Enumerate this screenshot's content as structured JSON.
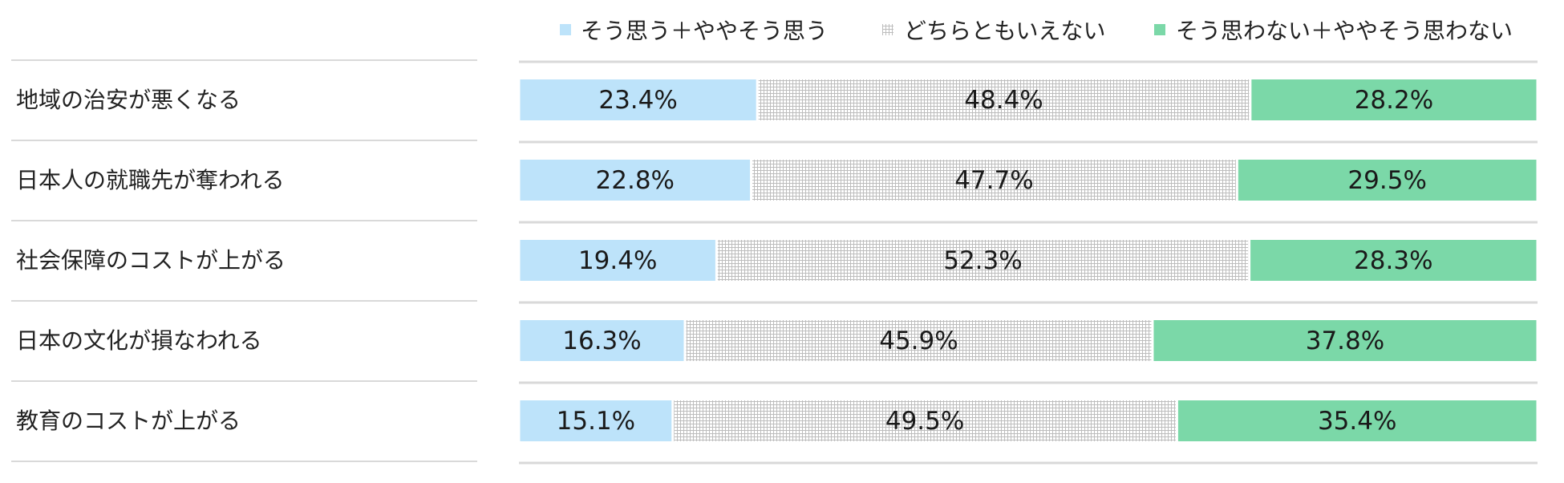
{
  "chart_data": {
    "type": "bar",
    "orientation": "horizontal",
    "stacked": "100%",
    "legend_position": "top-right",
    "categories": [
      "地域の治安が悪くなる",
      "日本人の就職先が奪われる",
      "社会保障のコストが上がる",
      "日本の文化が損なわれる",
      "教育のコストが上がる"
    ],
    "series": [
      {
        "name": "そう思う＋ややそう思う",
        "color": "#bde3fa",
        "pattern": "solid",
        "values": [
          23.4,
          22.8,
          19.4,
          16.3,
          15.1
        ]
      },
      {
        "name": "どちらともいえない",
        "color": "#c8c8c8",
        "pattern": "grid",
        "values": [
          48.4,
          47.7,
          52.3,
          45.9,
          49.5
        ]
      },
      {
        "name": "そう思わない＋ややそう思わない",
        "color": "#7bd8a8",
        "pattern": "solid",
        "values": [
          28.2,
          29.5,
          28.3,
          37.8,
          35.4
        ]
      }
    ],
    "value_suffix": "%",
    "xlim": [
      0,
      100
    ]
  }
}
